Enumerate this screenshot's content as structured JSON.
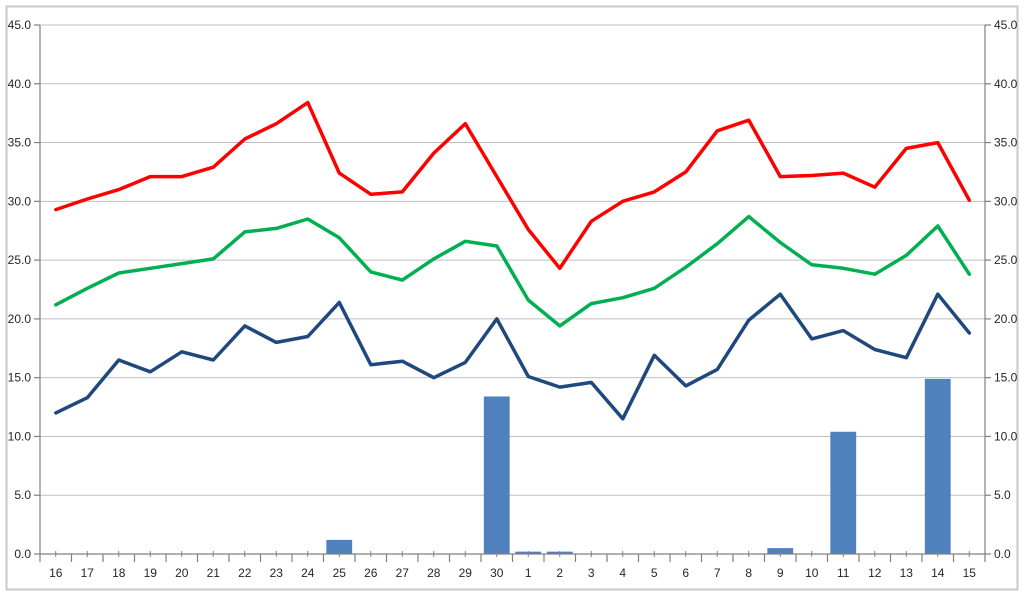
{
  "chart_data": {
    "type": "combo",
    "title": "",
    "xlabel": "",
    "ylabel": "",
    "categories": [
      "16",
      "17",
      "18",
      "19",
      "20",
      "21",
      "22",
      "23",
      "24",
      "25",
      "26",
      "27",
      "28",
      "29",
      "30",
      "1",
      "2",
      "3",
      "4",
      "5",
      "6",
      "7",
      "8",
      "9",
      "10",
      "11",
      "12",
      "13",
      "14",
      "15"
    ],
    "series": [
      {
        "name": "bars",
        "type": "bar",
        "color": "#4F81BD",
        "values": [
          0,
          0,
          0,
          0,
          0,
          0,
          0,
          0,
          0,
          1.2,
          0,
          0,
          0,
          0,
          13.4,
          0.2,
          0.2,
          0,
          0,
          0,
          0,
          0,
          0,
          0.5,
          0,
          10.4,
          0,
          0,
          14.9,
          0
        ]
      },
      {
        "name": "red-line",
        "type": "line",
        "color": "#FF0000",
        "values": [
          29.3,
          30.2,
          31.0,
          32.1,
          32.1,
          32.9,
          35.3,
          36.6,
          38.4,
          32.4,
          30.6,
          30.8,
          34.1,
          36.6,
          32.1,
          27.6,
          24.3,
          28.3,
          30.0,
          30.8,
          32.5,
          36.0,
          36.9,
          32.1,
          32.2,
          32.4,
          31.2,
          34.5,
          35.0,
          30.1
        ]
      },
      {
        "name": "green-line",
        "type": "line",
        "color": "#00B050",
        "values": [
          21.2,
          22.6,
          23.9,
          24.3,
          24.7,
          25.1,
          27.4,
          27.7,
          28.5,
          26.9,
          24.0,
          23.3,
          25.1,
          26.6,
          26.2,
          21.6,
          19.4,
          21.3,
          21.8,
          22.6,
          24.4,
          26.4,
          28.7,
          26.5,
          24.6,
          24.3,
          23.8,
          25.4,
          27.9,
          23.8
        ]
      },
      {
        "name": "blue-line",
        "type": "line",
        "color": "#1F497D",
        "values": [
          12.0,
          13.3,
          16.5,
          15.5,
          17.2,
          16.5,
          19.4,
          18.0,
          18.5,
          21.4,
          16.1,
          16.4,
          15.0,
          16.3,
          20.0,
          15.1,
          14.2,
          14.6,
          11.5,
          16.9,
          14.3,
          15.7,
          19.9,
          22.1,
          18.3,
          19.0,
          17.4,
          16.7,
          22.1,
          18.8
        ]
      }
    ],
    "ylim": [
      0,
      45
    ],
    "ytick_step": 5,
    "ytick_labels": [
      "0.0",
      "5.0",
      "10.0",
      "15.0",
      "20.0",
      "25.0",
      "30.0",
      "35.0",
      "40.0",
      "45.0"
    ],
    "axes": {
      "left": true,
      "right": true,
      "bottom": true
    },
    "grid": "horizontal",
    "legend": "none"
  },
  "style": {
    "gridline_color": "#BFBFBF",
    "axis_color": "#808080",
    "label_color": "#262626",
    "border_color": "#C9C9C9",
    "background": "#FFFFFF",
    "bar_color": "#4F81BD",
    "line_width": 3.5
  }
}
